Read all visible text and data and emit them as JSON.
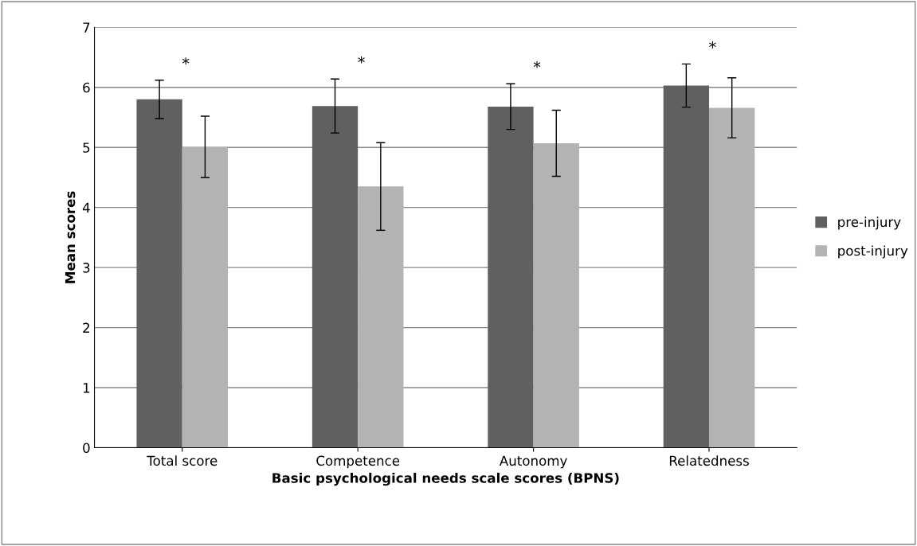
{
  "chart_data": {
    "type": "bar",
    "xlabel": "Basic psychological needs scale scores (BPNS)",
    "ylabel": "Mean scores",
    "categories": [
      "Total score",
      "Competence",
      "Autonomy",
      "Relatedness"
    ],
    "series": [
      {
        "name": "pre-injury",
        "color": "#606060",
        "values": [
          5.8,
          5.69,
          5.68,
          6.03
        ],
        "errors": [
          0.32,
          0.45,
          0.38,
          0.36
        ]
      },
      {
        "name": "post-injury",
        "color": "#b3b3b3",
        "values": [
          5.01,
          4.35,
          5.07,
          5.66
        ],
        "errors": [
          0.51,
          0.73,
          0.55,
          0.5
        ]
      }
    ],
    "ylim": [
      0,
      7
    ],
    "yticks": [
      0,
      1,
      2,
      3,
      4,
      5,
      6,
      7
    ],
    "grid": "y",
    "legend": "right",
    "annotations": [
      "*",
      "*",
      "*",
      "*"
    ]
  }
}
